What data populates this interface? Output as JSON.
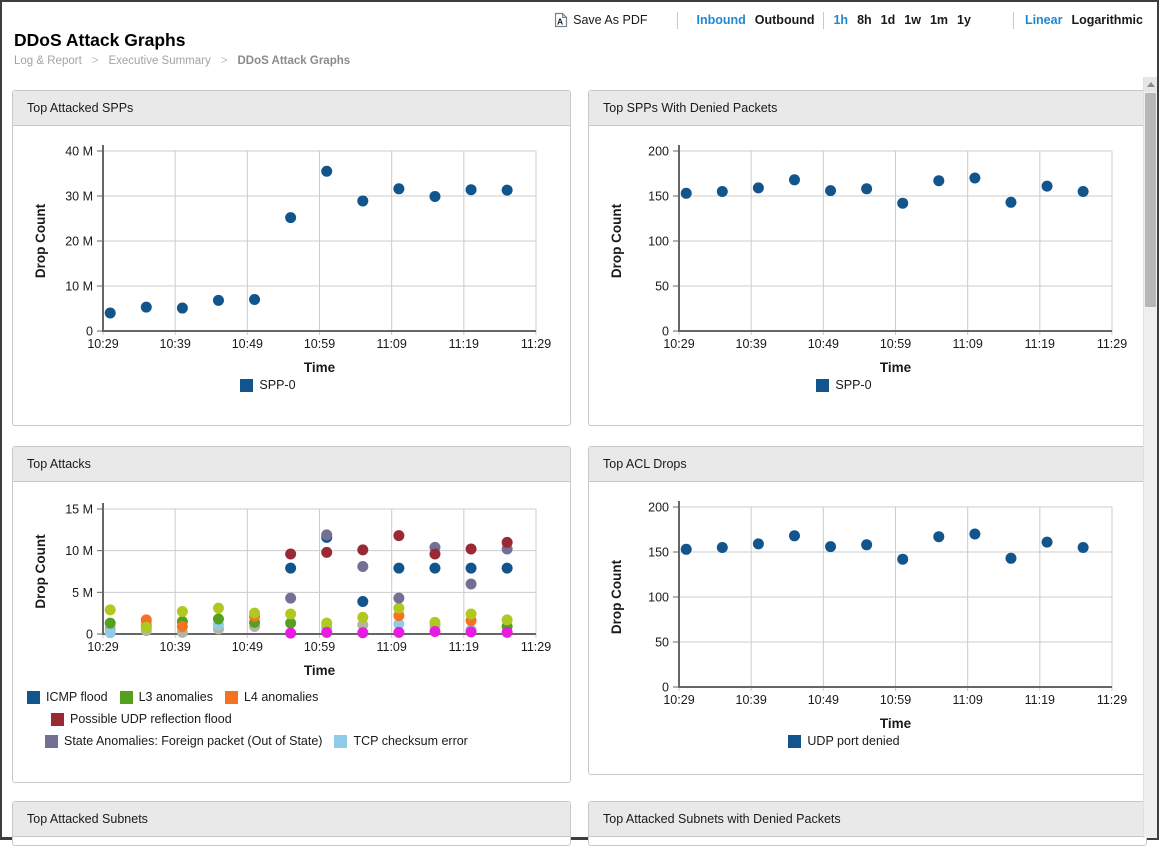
{
  "toolbar": {
    "save_as_pdf_label": "Save As PDF",
    "direction_options": [
      "Inbound",
      "Outbound"
    ],
    "direction_selected": "Inbound",
    "range_options": [
      "1h",
      "8h",
      "1d",
      "1w",
      "1m",
      "1y"
    ],
    "range_selected": "1h",
    "scale_options": [
      "Linear",
      "Logarithmic"
    ],
    "scale_selected": "Linear",
    "accent_color": "#1e88d2"
  },
  "header": {
    "title": "DDoS Attack Graphs",
    "breadcrumb": [
      "Log & Report",
      "Executive Summary",
      "DDoS Attack Graphs"
    ],
    "breadcrumb_separator": ">"
  },
  "panels": {
    "top_attacked_spps": "Top Attacked SPPs",
    "top_spps_denied": "Top SPPs With Denied Packets",
    "top_attacks": "Top Attacks",
    "top_acl_drops": "Top ACL Drops",
    "top_attacked_subnets": "Top Attacked Subnets",
    "top_attacked_subnets_denied": "Top Attacked Subnets with Denied Packets"
  },
  "chart_data": [
    {
      "title": "Top Attacked SPPs",
      "type": "scatter",
      "xlabel": "Time",
      "ylabel": "Drop Count",
      "x_ticks": [
        "10:29",
        "10:39",
        "10:49",
        "10:59",
        "11:09",
        "11:19",
        "11:29"
      ],
      "x_domain_minutes": 60,
      "y_max": 40,
      "y_ticks": [
        {
          "v": 0,
          "label": "0"
        },
        {
          "v": 10,
          "label": "10 M"
        },
        {
          "v": 20,
          "label": "20 M"
        },
        {
          "v": 30,
          "label": "30 M"
        },
        {
          "v": 40,
          "label": "40 M"
        }
      ],
      "y_unit": "millions",
      "point_minutes": [
        1,
        6,
        11,
        16,
        21,
        26,
        31,
        36,
        41,
        46,
        51,
        56
      ],
      "series": [
        {
          "name": "SPP-0",
          "color": "#12548c",
          "values": [
            4.0,
            5.3,
            5.1,
            6.8,
            7.0,
            25.2,
            35.5,
            28.9,
            31.6,
            29.9,
            31.4,
            31.3
          ]
        }
      ],
      "legend_align": "center",
      "legend_rows": [
        [
          {
            "label": "SPP-0",
            "color": "#12548c"
          }
        ]
      ]
    },
    {
      "title": "Top SPPs With Denied Packets",
      "type": "scatter",
      "xlabel": "Time",
      "ylabel": "Drop Count",
      "x_ticks": [
        "10:29",
        "10:39",
        "10:49",
        "10:59",
        "11:09",
        "11:19",
        "11:29"
      ],
      "x_domain_minutes": 60,
      "y_max": 200,
      "y_ticks": [
        {
          "v": 0,
          "label": "0"
        },
        {
          "v": 50,
          "label": "50"
        },
        {
          "v": 100,
          "label": "100"
        },
        {
          "v": 150,
          "label": "150"
        },
        {
          "v": 200,
          "label": "200"
        }
      ],
      "y_unit": "count",
      "point_minutes": [
        1,
        6,
        11,
        16,
        21,
        26,
        31,
        36,
        41,
        46,
        51,
        56
      ],
      "series": [
        {
          "name": "SPP-0",
          "color": "#12548c",
          "values": [
            153,
            155,
            159,
            168,
            156,
            158,
            142,
            167,
            170,
            143,
            161,
            155
          ]
        }
      ],
      "legend_align": "center",
      "legend_rows": [
        [
          {
            "label": "SPP-0",
            "color": "#12548c"
          }
        ]
      ]
    },
    {
      "title": "Top Attacks",
      "type": "scatter",
      "xlabel": "Time",
      "ylabel": "Drop Count",
      "x_ticks": [
        "10:29",
        "10:39",
        "10:49",
        "10:59",
        "11:09",
        "11:19",
        "11:29"
      ],
      "x_domain_minutes": 60,
      "y_max": 15,
      "y_ticks": [
        {
          "v": 0,
          "label": "0"
        },
        {
          "v": 5,
          "label": "5 M"
        },
        {
          "v": 10,
          "label": "10 M"
        },
        {
          "v": 15,
          "label": "15 M"
        }
      ],
      "y_unit": "millions",
      "point_minutes": [
        1,
        6,
        11,
        16,
        21,
        26,
        31,
        36,
        41,
        46,
        51,
        56
      ],
      "series": [
        {
          "name": "unlabeled-gray",
          "color": "#b3b3a6",
          "values": [
            0.6,
            0.4,
            0.2,
            0.6,
            0.9,
            null,
            0.8,
            1.1,
            null,
            1.0,
            null,
            null
          ]
        },
        {
          "name": "TCP checksum error",
          "color": "#92cbe8",
          "values": [
            0.15,
            1.3,
            null,
            1.1,
            null,
            null,
            null,
            null,
            1.2,
            null,
            0.5,
            null
          ]
        },
        {
          "name": "L3 anomalies",
          "color": "#56a01f",
          "values": [
            1.3,
            0.9,
            1.5,
            1.8,
            1.4,
            1.3,
            null,
            null,
            null,
            null,
            null,
            0.9
          ]
        },
        {
          "name": "L4 anomalies",
          "color": "#f4731f",
          "values": [
            null,
            1.7,
            0.9,
            null,
            2.1,
            null,
            null,
            null,
            2.2,
            null,
            1.6,
            null
          ]
        },
        {
          "name": "unlabeled-lime",
          "color": "#b2c822",
          "values": [
            2.9,
            0.8,
            2.7,
            3.1,
            2.5,
            2.4,
            1.3,
            2.0,
            3.1,
            1.4,
            2.4,
            1.7
          ]
        },
        {
          "name": "ICMP flood",
          "color": "#12548c",
          "values": [
            null,
            null,
            null,
            null,
            null,
            7.9,
            11.6,
            3.9,
            7.9,
            7.9,
            7.9,
            7.9
          ]
        },
        {
          "name": "State Anomalies: Foreign packet (Out of State)",
          "color": "#737096",
          "values": [
            null,
            null,
            null,
            null,
            null,
            4.3,
            11.9,
            8.1,
            4.3,
            10.4,
            6.0,
            10.2
          ]
        },
        {
          "name": "Possible UDP reflection flood",
          "color": "#9a2936",
          "values": [
            null,
            null,
            null,
            null,
            null,
            9.6,
            9.8,
            10.1,
            11.8,
            9.6,
            10.2,
            11.0
          ]
        },
        {
          "name": "unlabeled-magenta",
          "color": "#e81ce0",
          "values": [
            null,
            null,
            null,
            null,
            null,
            0.1,
            0.2,
            0.15,
            0.2,
            0.3,
            0.25,
            0.2
          ]
        }
      ],
      "legend_align": "left",
      "legend_rows": [
        [
          {
            "label": "ICMP flood",
            "color": "#12548c"
          },
          {
            "label": "L3 anomalies",
            "color": "#56a01f"
          },
          {
            "label": "L4 anomalies",
            "color": "#f4731f"
          }
        ],
        [
          {
            "label": "Possible UDP reflection flood",
            "color": "#9a2936"
          }
        ],
        [
          {
            "label": "State Anomalies: Foreign packet (Out of State)",
            "color": "#737096"
          },
          {
            "label": "TCP checksum error",
            "color": "#92cbe8"
          }
        ]
      ]
    },
    {
      "title": "Top ACL Drops",
      "type": "scatter",
      "xlabel": "Time",
      "ylabel": "Drop Count",
      "x_ticks": [
        "10:29",
        "10:39",
        "10:49",
        "10:59",
        "11:09",
        "11:19",
        "11:29"
      ],
      "x_domain_minutes": 60,
      "y_max": 200,
      "y_ticks": [
        {
          "v": 0,
          "label": "0"
        },
        {
          "v": 50,
          "label": "50"
        },
        {
          "v": 100,
          "label": "100"
        },
        {
          "v": 150,
          "label": "150"
        },
        {
          "v": 200,
          "label": "200"
        }
      ],
      "y_unit": "count",
      "point_minutes": [
        1,
        6,
        11,
        16,
        21,
        26,
        31,
        36,
        41,
        46,
        51,
        56
      ],
      "series": [
        {
          "name": "UDP port denied",
          "color": "#12548c",
          "values": [
            153,
            155,
            159,
            168,
            156,
            158,
            142,
            167,
            170,
            143,
            161,
            155
          ]
        }
      ],
      "legend_align": "center",
      "legend_rows": [
        [
          {
            "label": "UDP port denied",
            "color": "#12548c"
          }
        ]
      ]
    }
  ]
}
